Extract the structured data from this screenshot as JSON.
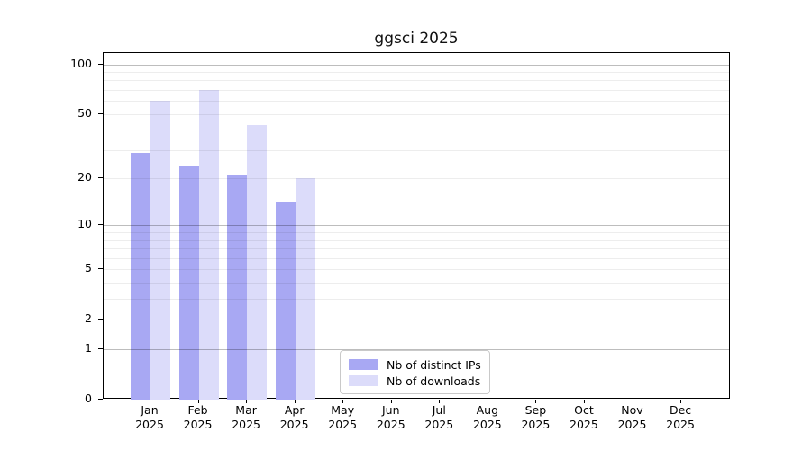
{
  "chart_data": {
    "type": "bar",
    "title": "ggsci 2025",
    "months": [
      "Jan",
      "Feb",
      "Mar",
      "Apr",
      "May",
      "Jun",
      "Jul",
      "Aug",
      "Sep",
      "Oct",
      "Nov",
      "Dec"
    ],
    "year_label": "2025",
    "series": [
      {
        "name": "Nb of distinct IPs",
        "color": "#a8a8f3",
        "values": [
          29,
          24,
          21,
          14,
          0,
          0,
          0,
          0,
          0,
          0,
          0,
          0
        ]
      },
      {
        "name": "Nb of downloads",
        "color": "#dcdcfa",
        "values": [
          60,
          70,
          43,
          20,
          0,
          0,
          0,
          0,
          0,
          0,
          0,
          0
        ]
      }
    ],
    "y_axis": {
      "scale": "log1p",
      "tick_labels": [
        0,
        1,
        2,
        5,
        10,
        20,
        50,
        100
      ],
      "major_gridlines": [
        1,
        10,
        100
      ],
      "minor_gridlines": [
        2,
        3,
        4,
        5,
        6,
        7,
        8,
        9,
        20,
        30,
        40,
        50,
        60,
        70,
        80,
        90
      ],
      "max": 117
    },
    "legend_position": "bottom-center",
    "grid_over_bars": true
  }
}
